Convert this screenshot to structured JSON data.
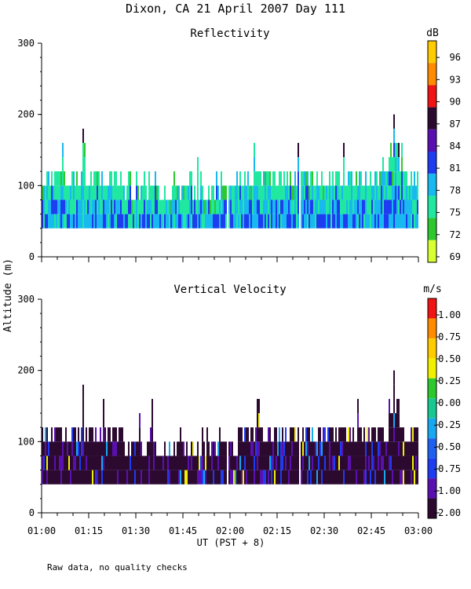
{
  "title": "Dixon, CA 21 April 2007  Day 111",
  "note": "Raw data, no quality checks",
  "colors": {
    "reflectivity": [
      "#d8ff30",
      "#2ec82e",
      "#20e8a0",
      "#18b8f0",
      "#1e3cf0",
      "#5a10b0",
      "#2c0a30",
      "#f01414",
      "#ff8c00",
      "#ffcc00"
    ],
    "velocity": [
      "#2c0a30",
      "#5a10b0",
      "#1e3cf0",
      "#2060f0",
      "#18a8f0",
      "#18c890",
      "#2ec82e",
      "#f0f000",
      "#ffcc00",
      "#ff8c00",
      "#f01414"
    ]
  },
  "chart_data": [
    {
      "type": "heatmap",
      "title": "Reflectivity",
      "xlabel": "UT  (PST + 8)",
      "ylabel": "Altitude (m)",
      "xlim": [
        "01:00",
        "03:00"
      ],
      "ylim": [
        0,
        300
      ],
      "yticks": [
        "300",
        "200",
        "100",
        "0"
      ],
      "xticks": [
        "01:00",
        "01:15",
        "01:30",
        "01:45",
        "02:00",
        "02:15",
        "02:30",
        "02:45",
        "03:00"
      ],
      "colorbar_unit": "dB",
      "colorbar_ticks": [
        "96",
        "93",
        "90",
        "87",
        "84",
        "81",
        "78",
        "75",
        "72",
        "69"
      ],
      "echo_base_m": 40,
      "echo_top_typical_m": [
        80,
        120
      ],
      "peaks": [
        {
          "time": "01:13",
          "altitude_m": 180
        },
        {
          "time": "02:52",
          "altitude_m": 200
        }
      ]
    },
    {
      "type": "heatmap",
      "title": "Vertical Velocity",
      "xlabel": "UT  (PST + 8)",
      "ylabel": "Altitude (m)",
      "xlim": [
        "01:00",
        "03:00"
      ],
      "ylim": [
        0,
        300
      ],
      "yticks": [
        "300",
        "200",
        "100",
        "0"
      ],
      "xticks": [
        "01:00",
        "01:15",
        "01:30",
        "01:45",
        "02:00",
        "02:15",
        "02:30",
        "02:45",
        "03:00"
      ],
      "colorbar_unit": "m/s",
      "colorbar_ticks": [
        "1.00",
        "0.75",
        "0.50",
        "0.25",
        "0.00",
        "-0.25",
        "-0.50",
        "-0.75",
        "-1.00",
        "-2.00"
      ],
      "echo_base_m": 40,
      "echo_top_typical_m": [
        80,
        120
      ],
      "peaks": [
        {
          "time": "01:13",
          "altitude_m": 180
        },
        {
          "time": "02:52",
          "altitude_m": 200
        }
      ]
    }
  ]
}
